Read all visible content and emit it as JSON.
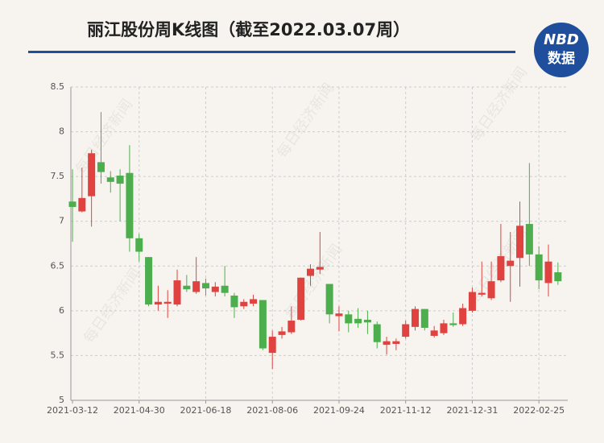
{
  "chart_data": {
    "type": "candlestick",
    "title": "丽江股份周K线图（截至2022.03.07周）",
    "logo": {
      "top": "NBD",
      "bottom": "数据"
    },
    "watermark": "每日经济新闻",
    "categories": [
      "2021-03-12",
      null,
      null,
      null,
      null,
      null,
      null,
      "2021-04-30",
      null,
      null,
      null,
      null,
      null,
      null,
      "2021-06-18",
      null,
      null,
      null,
      null,
      null,
      null,
      "2021-08-06",
      null,
      null,
      null,
      null,
      null,
      null,
      "2021-09-24",
      null,
      null,
      null,
      null,
      null,
      null,
      "2021-11-12",
      null,
      null,
      null,
      null,
      null,
      null,
      "2021-12-31",
      null,
      null,
      null,
      null,
      null,
      null,
      "2022-02-25",
      null,
      null
    ],
    "open": [
      7.22,
      7.11,
      7.28,
      7.66,
      7.49,
      7.51,
      7.54,
      6.81,
      6.6,
      6.07,
      6.08,
      6.07,
      6.28,
      6.21,
      6.31,
      6.21,
      6.28,
      6.17,
      6.05,
      6.08,
      6.12,
      5.53,
      5.73,
      5.76,
      5.9,
      6.39,
      6.46,
      6.3,
      5.94,
      5.96,
      5.91,
      5.9,
      5.85,
      5.62,
      5.63,
      5.71,
      5.82,
      6.02,
      5.72,
      5.75,
      5.86,
      5.85,
      6.0,
      6.18,
      6.14,
      6.34,
      6.5,
      6.59,
      6.97,
      6.63,
      6.31,
      6.43
    ],
    "high": [
      7.58,
      7.6,
      7.8,
      8.22,
      7.56,
      7.58,
      7.85,
      6.86,
      6.6,
      6.28,
      6.23,
      6.46,
      6.4,
      6.6,
      6.36,
      6.32,
      6.5,
      6.2,
      6.13,
      6.18,
      6.12,
      5.78,
      5.82,
      6.05,
      6.37,
      6.52,
      6.88,
      6.3,
      6.05,
      6.0,
      6.03,
      6.0,
      5.88,
      5.71,
      5.69,
      5.89,
      6.05,
      6.02,
      5.83,
      5.9,
      5.98,
      6.08,
      6.26,
      6.55,
      6.55,
      6.97,
      6.88,
      7.22,
      7.65,
      6.72,
      6.74,
      6.54
    ],
    "low": [
      6.77,
      7.1,
      6.94,
      7.42,
      7.32,
      7.0,
      6.66,
      6.55,
      6.05,
      6.0,
      5.92,
      6.05,
      6.21,
      6.19,
      6.17,
      6.16,
      6.16,
      5.92,
      6.02,
      6.05,
      5.56,
      5.35,
      5.69,
      5.74,
      5.89,
      6.28,
      6.41,
      5.86,
      5.77,
      5.76,
      5.81,
      5.74,
      5.58,
      5.51,
      5.56,
      5.69,
      5.78,
      5.78,
      5.7,
      5.73,
      5.82,
      5.83,
      5.98,
      6.16,
      6.12,
      6.32,
      6.1,
      6.27,
      6.5,
      6.24,
      6.16,
      6.29
    ],
    "close": [
      7.16,
      7.26,
      7.76,
      7.55,
      7.44,
      7.42,
      6.81,
      6.66,
      6.07,
      6.1,
      6.1,
      6.34,
      6.24,
      6.33,
      6.25,
      6.27,
      6.2,
      6.04,
      6.1,
      6.13,
      5.58,
      5.71,
      5.77,
      5.89,
      6.37,
      6.47,
      6.49,
      5.96,
      5.97,
      5.86,
      5.86,
      5.87,
      5.65,
      5.66,
      5.66,
      5.85,
      6.02,
      5.81,
      5.78,
      5.86,
      5.84,
      6.03,
      6.21,
      6.2,
      6.33,
      6.61,
      6.56,
      6.95,
      6.63,
      6.34,
      6.55,
      6.33
    ],
    "up_color": "#e0423f",
    "down_color": "#4cae4c",
    "ylim": [
      5,
      8.5
    ],
    "yticks": [
      5,
      5.5,
      6,
      6.5,
      7,
      7.5,
      8,
      8.5
    ],
    "grid": true
  }
}
